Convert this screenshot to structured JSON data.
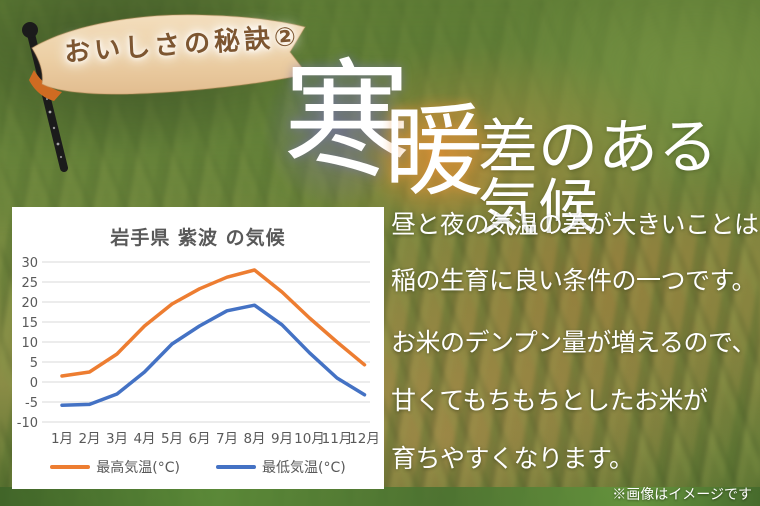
{
  "banner": {
    "label": "おいしさの秘訣②"
  },
  "headline": {
    "char_cold": "寒",
    "char_warm": "暖",
    "rest": "差のある気候"
  },
  "description": {
    "lines": [
      "昼と夜の気温の差が大きいことは",
      "稲の生育に良い条件の一つです。",
      "お米のデンプン量が増えるので、",
      "甘くてもちもちとしたお米が",
      "育ちやすくなります。"
    ]
  },
  "disclaimer": "※画像はイメージです",
  "chart_data": {
    "type": "line",
    "title": "岩手県 紫波 の気候",
    "categories": [
      "1月",
      "2月",
      "3月",
      "4月",
      "5月",
      "6月",
      "7月",
      "8月",
      "9月",
      "10月",
      "11月",
      "12月"
    ],
    "series": [
      {
        "name": "最高気温(°C)",
        "color": "#ED7D31",
        "values": [
          1.5,
          2.5,
          7,
          14,
          19.5,
          23.3,
          26.2,
          28,
          22.5,
          16,
          10,
          4.3
        ]
      },
      {
        "name": "最低気温(°C)",
        "color": "#4472C4",
        "values": [
          -5.8,
          -5.6,
          -3,
          2.5,
          9.5,
          14,
          17.8,
          19.2,
          14.3,
          7.3,
          1,
          -3.2
        ]
      }
    ],
    "xlabel": "",
    "ylabel": "",
    "ylim": [
      -10,
      30
    ],
    "ytick_step": 5,
    "grid": true,
    "legend_position": "bottom",
    "gridline_color": "#d9d9d9",
    "tick_color": "#595959"
  },
  "colors": {
    "flag_fill": "#eccfa4",
    "flag_fold": "#cf6b22",
    "flag_text": "#7d5631",
    "cold_glow": "#6c6ca8",
    "warm_glow": "#e48e30"
  }
}
